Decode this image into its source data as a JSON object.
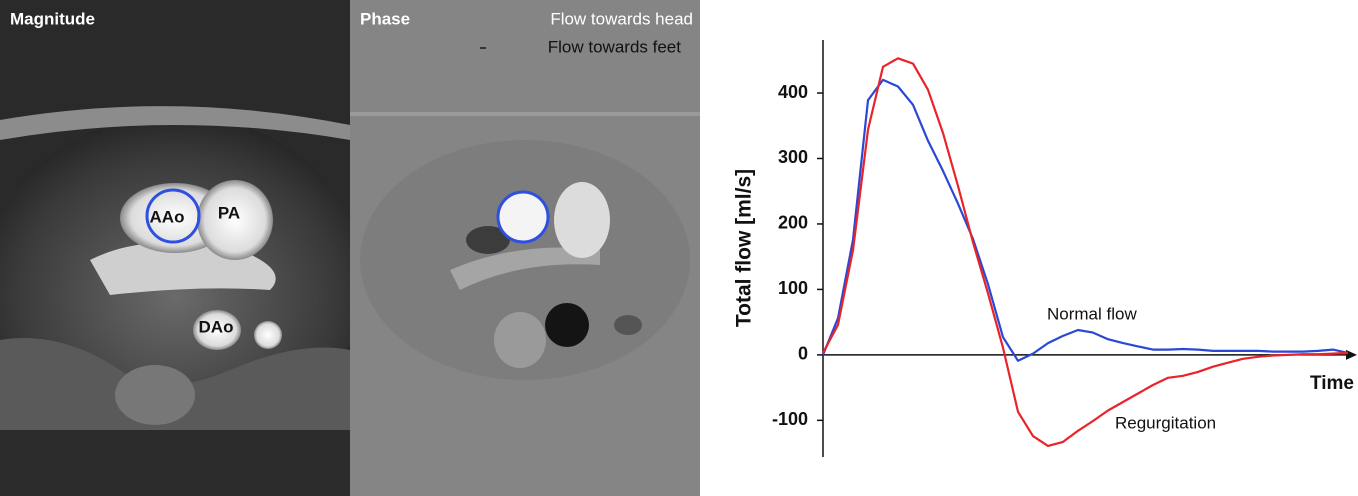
{
  "images": {
    "magnitude": {
      "title": "Magnitude",
      "labels": [
        "AAo",
        "PA",
        "DAo"
      ]
    },
    "phase": {
      "title": "Phase",
      "legend": [
        "Flow towards head",
        "Flow towards feet"
      ]
    }
  },
  "chart_data": {
    "type": "line",
    "y_label": "Total flow [ml/s]",
    "x_label": "Time",
    "ylim": [
      -156,
      481
    ],
    "yticks": [
      -100,
      0,
      100,
      200,
      300,
      400
    ],
    "series": [
      {
        "name": "Normal flow",
        "color": "#2b47d6",
        "values": [
          0,
          56,
          176,
          389,
          420,
          410,
          382,
          327,
          281,
          231,
          177,
          108,
          27,
          -9,
          2,
          18,
          29,
          38,
          34,
          24,
          18,
          13,
          8,
          8,
          9,
          8,
          6,
          6,
          6,
          6,
          5,
          5,
          5,
          6,
          8,
          3
        ]
      },
      {
        "name": "Regurgitation",
        "color": "#e8232a",
        "values": [
          3,
          46,
          160,
          344,
          440,
          453,
          445,
          405,
          339,
          258,
          172,
          94,
          11,
          -87,
          -124,
          -139,
          -133,
          -116,
          -101,
          -85,
          -72,
          -59,
          -46,
          -35,
          -32,
          -26,
          -18,
          -12,
          -6,
          -3,
          -1,
          0,
          1,
          1,
          2,
          3
        ]
      }
    ]
  }
}
